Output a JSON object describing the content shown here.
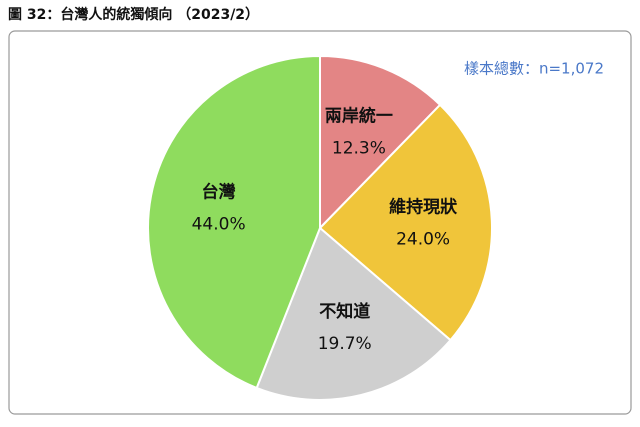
{
  "chart_data": {
    "type": "pie",
    "title": "圖 32：台灣人的統獨傾向 （2023/2）",
    "annotation": "樣本總數：n=1,072",
    "categories": [
      "兩岸統一",
      "維持現狀",
      "不知道",
      "台灣"
    ],
    "values": [
      12.3,
      24.0,
      19.7,
      44.0
    ],
    "value_labels": [
      "12.3%",
      "24.0%",
      "19.7%",
      "44.0%"
    ],
    "colors": [
      "#e38585",
      "#f0c53a",
      "#cfcfcf",
      "#8fdc5e"
    ]
  }
}
